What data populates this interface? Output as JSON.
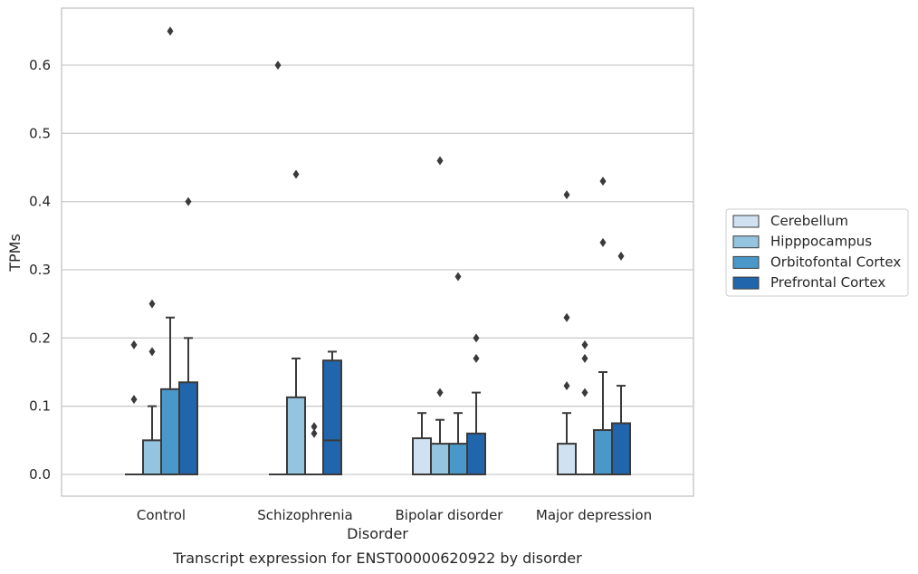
{
  "chart_data": {
    "type": "box",
    "title": "",
    "caption": "Transcript expression for ENST00000620922 by disorder",
    "xlabel": "Disorder",
    "ylabel": "TPMs",
    "ylim": [
      -0.032,
      0.68
    ],
    "yticks": [
      0.0,
      0.1,
      0.2,
      0.3,
      0.4,
      0.5,
      0.6
    ],
    "ytick_labels": [
      "0.0",
      "0.1",
      "0.2",
      "0.3",
      "0.4",
      "0.5",
      "0.6"
    ],
    "grid": "horizontal",
    "legend_position": "right",
    "categories": [
      "Control",
      "Schizophrenia",
      "Bipolar disorder",
      "Major depression"
    ],
    "series": [
      {
        "name": "Cerebellum",
        "color": "#d0e1f2",
        "boxes": [
          {
            "q1": 0,
            "median": 0,
            "q3": 0,
            "whisker_low": 0,
            "whisker_high": 0,
            "outliers": [
              0.11,
              0.19
            ]
          },
          {
            "q1": 0,
            "median": 0,
            "q3": 0,
            "whisker_low": 0,
            "whisker_high": 0,
            "outliers": [
              0.6
            ]
          },
          {
            "q1": 0,
            "median": 0,
            "q3": 0.053,
            "whisker_low": 0,
            "whisker_high": 0.09,
            "outliers": []
          },
          {
            "q1": 0,
            "median": 0,
            "q3": 0.045,
            "whisker_low": 0,
            "whisker_high": 0.09,
            "outliers": [
              0.13,
              0.23,
              0.41
            ]
          }
        ]
      },
      {
        "name": "Hipppocampus",
        "color": "#94c4df",
        "boxes": [
          {
            "q1": 0,
            "median": 0,
            "q3": 0.05,
            "whisker_low": 0,
            "whisker_high": 0.1,
            "outliers": [
              0.18,
              0.25
            ]
          },
          {
            "q1": 0,
            "median": 0,
            "q3": 0.113,
            "whisker_low": 0,
            "whisker_high": 0.17,
            "outliers": [
              0.44
            ]
          },
          {
            "q1": 0,
            "median": 0,
            "q3": 0.045,
            "whisker_low": 0,
            "whisker_high": 0.08,
            "outliers": [
              0.12,
              0.46
            ]
          },
          {
            "q1": 0,
            "median": 0,
            "q3": 0,
            "whisker_low": 0,
            "whisker_high": 0,
            "outliers": [
              0.12,
              0.17,
              0.19
            ]
          }
        ]
      },
      {
        "name": "Orbitofontal Cortex",
        "color": "#4a98c9",
        "boxes": [
          {
            "q1": 0,
            "median": 0,
            "q3": 0.125,
            "whisker_low": 0,
            "whisker_high": 0.23,
            "outliers": [
              0.65
            ]
          },
          {
            "q1": 0,
            "median": 0,
            "q3": 0,
            "whisker_low": 0,
            "whisker_high": 0,
            "outliers": [
              0.06,
              0.07
            ]
          },
          {
            "q1": 0,
            "median": 0,
            "q3": 0.045,
            "whisker_low": 0,
            "whisker_high": 0.09,
            "outliers": [
              0.29
            ]
          },
          {
            "q1": 0,
            "median": 0,
            "q3": 0.065,
            "whisker_low": 0,
            "whisker_high": 0.15,
            "outliers": [
              0.34,
              0.43
            ]
          }
        ]
      },
      {
        "name": "Prefrontal Cortex",
        "color": "#2166ac",
        "boxes": [
          {
            "q1": 0,
            "median": 0,
            "q3": 0.135,
            "whisker_low": 0,
            "whisker_high": 0.2,
            "outliers": [
              0.4
            ]
          },
          {
            "q1": 0,
            "median": 0.05,
            "q3": 0.167,
            "whisker_low": 0,
            "whisker_high": 0.18,
            "outliers": []
          },
          {
            "q1": 0,
            "median": 0,
            "q3": 0.06,
            "whisker_low": 0,
            "whisker_high": 0.12,
            "outliers": [
              0.17,
              0.2
            ]
          },
          {
            "q1": 0,
            "median": 0,
            "q3": 0.075,
            "whisker_low": 0,
            "whisker_high": 0.13,
            "outliers": [
              0.32
            ]
          }
        ]
      }
    ]
  }
}
